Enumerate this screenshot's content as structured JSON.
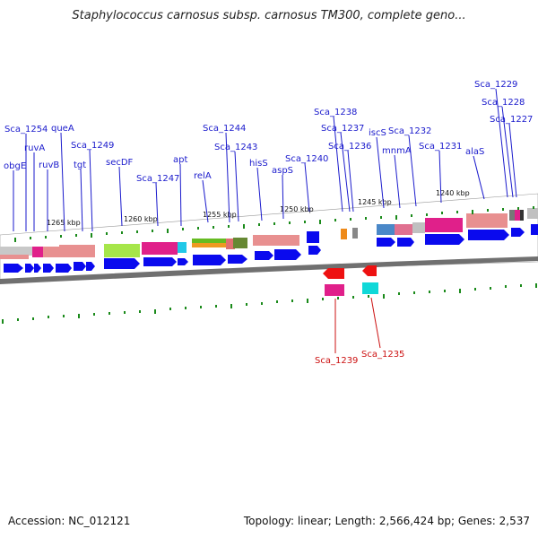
{
  "header": {
    "title": "Staphylococcus carnosus subsp. carnosus TM300, complete geno..."
  },
  "footer": {
    "accession": "Accession: NC_012121",
    "summary": "Topology: linear; Length: 2,566,424 bp; Genes: 2,537"
  },
  "map": {
    "scale_labels": [
      "1265 kbp",
      "1260 kbp",
      "1255 kbp",
      "1250 kbp",
      "1245 kbp",
      "1240 kbp"
    ],
    "gene_labels_top": [
      "obgE",
      "Sca_1254",
      "ruvA",
      "ruvB",
      "queA",
      "tgt",
      "Sca_1249",
      "secDF",
      "Sca_1247",
      "apt",
      "relA",
      "Sca_1244",
      "Sca_1243",
      "hisS",
      "aspS",
      "Sca_1240",
      "Sca_1238",
      "Sca_1237",
      "Sca_1236",
      "iscS",
      "mnmA",
      "Sca_1232",
      "Sca_1231",
      "alaS",
      "Sca_1229",
      "Sca_1228",
      "Sca_1227"
    ],
    "gene_labels_bottom": [
      "Sca_1239",
      "Sca_1235"
    ],
    "colors": {
      "label_top": "#1a1acc",
      "label_bottom": "#cc1111",
      "gene_arrow": "#0a0aee",
      "tick": "#1a8a1a",
      "backbone": "#777777"
    }
  }
}
